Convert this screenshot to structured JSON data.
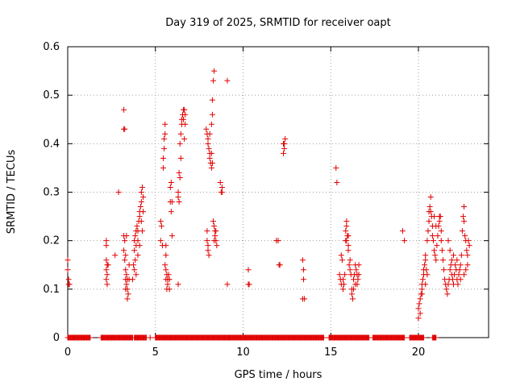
{
  "chart_data": {
    "type": "scatter",
    "title": "Day 319 of 2025, SRMTID for receiver oapt",
    "xlabel": "GPS time / hours",
    "ylabel": "SRMTID / TECUs",
    "xlim": [
      0,
      24
    ],
    "ylim": [
      0,
      0.6
    ],
    "xticks": [
      0,
      5,
      10,
      15,
      20
    ],
    "xtick_labels": [
      "0",
      "5",
      "10",
      "15",
      "20"
    ],
    "yticks": [
      0,
      0.1,
      0.2,
      0.3,
      0.4,
      0.5,
      0.6
    ],
    "ytick_labels": [
      "0",
      "0.1",
      "0.2",
      "0.3",
      "0.4",
      "0.5",
      "0.6"
    ],
    "grid": true,
    "marker": "plus",
    "color": "#e00000",
    "series": [
      {
        "name": "SRMTID",
        "points": [
          [
            0.0,
            0.16
          ],
          [
            0.0,
            0.14
          ],
          [
            0.05,
            0.12
          ],
          [
            0.05,
            0.11
          ],
          [
            0.1,
            0.11
          ],
          [
            2.2,
            0.2
          ],
          [
            2.2,
            0.19
          ],
          [
            2.2,
            0.16
          ],
          [
            2.25,
            0.15
          ],
          [
            2.2,
            0.14
          ],
          [
            2.25,
            0.13
          ],
          [
            2.2,
            0.12
          ],
          [
            2.25,
            0.11
          ],
          [
            2.3,
            0.15
          ],
          [
            2.7,
            0.17
          ],
          [
            2.9,
            0.3
          ],
          [
            3.2,
            0.47
          ],
          [
            3.25,
            0.43
          ],
          [
            3.2,
            0.43
          ],
          [
            3.2,
            0.21
          ],
          [
            3.25,
            0.2
          ],
          [
            3.2,
            0.18
          ],
          [
            3.3,
            0.17
          ],
          [
            3.25,
            0.16
          ],
          [
            3.3,
            0.14
          ],
          [
            3.35,
            0.13
          ],
          [
            3.3,
            0.12
          ],
          [
            3.4,
            0.12
          ],
          [
            3.35,
            0.11
          ],
          [
            3.4,
            0.1
          ],
          [
            3.3,
            0.1
          ],
          [
            3.45,
            0.09
          ],
          [
            3.4,
            0.08
          ],
          [
            3.5,
            0.12
          ],
          [
            3.35,
            0.21
          ],
          [
            3.5,
            0.15
          ],
          [
            3.7,
            0.12
          ],
          [
            3.75,
            0.15
          ],
          [
            3.8,
            0.18
          ],
          [
            3.8,
            0.2
          ],
          [
            3.85,
            0.21
          ],
          [
            3.9,
            0.22
          ],
          [
            3.95,
            0.23
          ],
          [
            3.9,
            0.19
          ],
          [
            4.0,
            0.2
          ],
          [
            4.0,
            0.22
          ],
          [
            4.05,
            0.24
          ],
          [
            4.1,
            0.25
          ],
          [
            4.1,
            0.26
          ],
          [
            4.15,
            0.27
          ],
          [
            4.2,
            0.28
          ],
          [
            4.2,
            0.3
          ],
          [
            4.25,
            0.31
          ],
          [
            4.3,
            0.29
          ],
          [
            4.3,
            0.26
          ],
          [
            4.25,
            0.22
          ],
          [
            3.85,
            0.16
          ],
          [
            3.8,
            0.14
          ],
          [
            3.9,
            0.13
          ],
          [
            4.0,
            0.17
          ],
          [
            4.1,
            0.19
          ],
          [
            4.2,
            0.24
          ],
          [
            5.3,
            0.24
          ],
          [
            5.35,
            0.23
          ],
          [
            5.3,
            0.2
          ],
          [
            5.4,
            0.19
          ],
          [
            5.45,
            0.35
          ],
          [
            5.45,
            0.37
          ],
          [
            5.5,
            0.39
          ],
          [
            5.55,
            0.44
          ],
          [
            5.55,
            0.42
          ],
          [
            5.5,
            0.41
          ],
          [
            5.6,
            0.19
          ],
          [
            5.6,
            0.17
          ],
          [
            5.55,
            0.15
          ],
          [
            5.6,
            0.14
          ],
          [
            5.65,
            0.13
          ],
          [
            5.6,
            0.12
          ],
          [
            5.7,
            0.11
          ],
          [
            5.65,
            0.1
          ],
          [
            5.7,
            0.12
          ],
          [
            5.75,
            0.13
          ],
          [
            5.8,
            0.12
          ],
          [
            5.8,
            0.1
          ],
          [
            5.85,
            0.31
          ],
          [
            5.85,
            0.28
          ],
          [
            5.9,
            0.32
          ],
          [
            5.9,
            0.26
          ],
          [
            5.95,
            0.28
          ],
          [
            5.95,
            0.21
          ],
          [
            6.3,
            0.3
          ],
          [
            6.3,
            0.29
          ],
          [
            6.35,
            0.28
          ],
          [
            6.3,
            0.11
          ],
          [
            6.35,
            0.34
          ],
          [
            6.4,
            0.33
          ],
          [
            6.45,
            0.37
          ],
          [
            6.4,
            0.4
          ],
          [
            6.45,
            0.42
          ],
          [
            6.5,
            0.44
          ],
          [
            6.5,
            0.45
          ],
          [
            6.55,
            0.46
          ],
          [
            6.6,
            0.47
          ],
          [
            6.65,
            0.47
          ],
          [
            6.6,
            0.45
          ],
          [
            6.7,
            0.46
          ],
          [
            6.7,
            0.44
          ],
          [
            6.65,
            0.41
          ],
          [
            7.9,
            0.43
          ],
          [
            7.95,
            0.42
          ],
          [
            8.0,
            0.41
          ],
          [
            8.0,
            0.4
          ],
          [
            8.05,
            0.39
          ],
          [
            8.1,
            0.38
          ],
          [
            8.1,
            0.37
          ],
          [
            8.15,
            0.36
          ],
          [
            8.2,
            0.35
          ],
          [
            8.25,
            0.36
          ],
          [
            8.2,
            0.38
          ],
          [
            8.25,
            0.46
          ],
          [
            8.25,
            0.49
          ],
          [
            8.3,
            0.53
          ],
          [
            8.35,
            0.55
          ],
          [
            8.2,
            0.44
          ],
          [
            8.1,
            0.42
          ],
          [
            7.95,
            0.22
          ],
          [
            7.95,
            0.2
          ],
          [
            8.0,
            0.19
          ],
          [
            8.0,
            0.18
          ],
          [
            8.05,
            0.17
          ],
          [
            8.3,
            0.24
          ],
          [
            8.35,
            0.23
          ],
          [
            8.4,
            0.22
          ],
          [
            8.4,
            0.21
          ],
          [
            8.45,
            0.2
          ],
          [
            8.5,
            0.19
          ],
          [
            8.35,
            0.2
          ],
          [
            8.45,
            0.22
          ],
          [
            8.7,
            0.32
          ],
          [
            8.8,
            0.31
          ],
          [
            8.75,
            0.3
          ],
          [
            8.8,
            0.3
          ],
          [
            9.1,
            0.53
          ],
          [
            9.1,
            0.11
          ],
          [
            10.3,
            0.14
          ],
          [
            10.3,
            0.11
          ],
          [
            10.35,
            0.11
          ],
          [
            11.9,
            0.2
          ],
          [
            12.0,
            0.2
          ],
          [
            12.1,
            0.15
          ],
          [
            12.05,
            0.15
          ],
          [
            12.3,
            0.4
          ],
          [
            12.35,
            0.39
          ],
          [
            12.4,
            0.41
          ],
          [
            12.35,
            0.4
          ],
          [
            12.3,
            0.38
          ],
          [
            13.4,
            0.16
          ],
          [
            13.45,
            0.14
          ],
          [
            13.45,
            0.12
          ],
          [
            13.4,
            0.08
          ],
          [
            13.5,
            0.08
          ],
          [
            15.3,
            0.35
          ],
          [
            15.35,
            0.32
          ],
          [
            15.5,
            0.13
          ],
          [
            15.55,
            0.12
          ],
          [
            15.6,
            0.11
          ],
          [
            15.6,
            0.17
          ],
          [
            15.65,
            0.16
          ],
          [
            15.7,
            0.12
          ],
          [
            15.7,
            0.1
          ],
          [
            15.75,
            0.11
          ],
          [
            15.8,
            0.13
          ],
          [
            15.85,
            0.2
          ],
          [
            15.85,
            0.22
          ],
          [
            15.9,
            0.23
          ],
          [
            15.9,
            0.24
          ],
          [
            15.95,
            0.21
          ],
          [
            16.0,
            0.19
          ],
          [
            16.0,
            0.18
          ],
          [
            16.05,
            0.15
          ],
          [
            16.1,
            0.14
          ],
          [
            16.15,
            0.13
          ],
          [
            16.2,
            0.1
          ],
          [
            16.2,
            0.09
          ],
          [
            16.25,
            0.08
          ],
          [
            16.3,
            0.1
          ],
          [
            16.3,
            0.12
          ],
          [
            16.35,
            0.13
          ],
          [
            16.4,
            0.15
          ],
          [
            16.45,
            0.14
          ],
          [
            16.5,
            0.13
          ],
          [
            16.55,
            0.12
          ],
          [
            16.5,
            0.11
          ],
          [
            16.6,
            0.13
          ],
          [
            16.6,
            0.15
          ],
          [
            16.4,
            0.11
          ],
          [
            16.1,
            0.16
          ],
          [
            16.0,
            0.21
          ],
          [
            15.9,
            0.2
          ],
          [
            19.1,
            0.22
          ],
          [
            19.2,
            0.2
          ],
          [
            20.0,
            0.04
          ],
          [
            20.0,
            0.06
          ],
          [
            20.05,
            0.07
          ],
          [
            20.1,
            0.08
          ],
          [
            20.1,
            0.05
          ],
          [
            20.15,
            0.09
          ],
          [
            20.2,
            0.1
          ],
          [
            20.2,
            0.11
          ],
          [
            20.25,
            0.12
          ],
          [
            20.3,
            0.13
          ],
          [
            20.3,
            0.14
          ],
          [
            20.35,
            0.15
          ],
          [
            20.4,
            0.16
          ],
          [
            20.4,
            0.17
          ],
          [
            20.45,
            0.14
          ],
          [
            20.5,
            0.13
          ],
          [
            20.5,
            0.2
          ],
          [
            20.55,
            0.22
          ],
          [
            20.6,
            0.24
          ],
          [
            20.6,
            0.26
          ],
          [
            20.65,
            0.27
          ],
          [
            20.7,
            0.29
          ],
          [
            20.75,
            0.25
          ],
          [
            20.8,
            0.23
          ],
          [
            20.8,
            0.21
          ],
          [
            20.85,
            0.2
          ],
          [
            20.9,
            0.18
          ],
          [
            20.95,
            0.17
          ],
          [
            21.0,
            0.16
          ],
          [
            21.05,
            0.19
          ],
          [
            21.1,
            0.21
          ],
          [
            21.15,
            0.23
          ],
          [
            21.2,
            0.24
          ],
          [
            21.25,
            0.25
          ],
          [
            21.3,
            0.22
          ],
          [
            21.3,
            0.2
          ],
          [
            21.35,
            0.18
          ],
          [
            21.4,
            0.16
          ],
          [
            21.45,
            0.14
          ],
          [
            21.5,
            0.12
          ],
          [
            21.55,
            0.11
          ],
          [
            21.6,
            0.1
          ],
          [
            21.65,
            0.09
          ],
          [
            21.7,
            0.11
          ],
          [
            21.75,
            0.12
          ],
          [
            21.8,
            0.14
          ],
          [
            21.85,
            0.15
          ],
          [
            21.9,
            0.13
          ],
          [
            21.95,
            0.12
          ],
          [
            22.0,
            0.11
          ],
          [
            22.05,
            0.13
          ],
          [
            22.1,
            0.15
          ],
          [
            22.15,
            0.14
          ],
          [
            22.2,
            0.12
          ],
          [
            22.25,
            0.11
          ],
          [
            22.3,
            0.13
          ],
          [
            22.35,
            0.14
          ],
          [
            22.4,
            0.15
          ],
          [
            22.45,
            0.17
          ],
          [
            22.5,
            0.22
          ],
          [
            22.55,
            0.25
          ],
          [
            22.6,
            0.27
          ],
          [
            22.6,
            0.24
          ],
          [
            22.65,
            0.21
          ],
          [
            22.7,
            0.2
          ],
          [
            22.75,
            0.18
          ],
          [
            22.8,
            0.17
          ],
          [
            22.85,
            0.2
          ],
          [
            22.9,
            0.19
          ],
          [
            22.8,
            0.15
          ],
          [
            22.7,
            0.14
          ],
          [
            22.6,
            0.13
          ],
          [
            21.7,
            0.2
          ],
          [
            21.8,
            0.18
          ],
          [
            21.9,
            0.16
          ],
          [
            21.2,
            0.25
          ],
          [
            21.0,
            0.23
          ],
          [
            20.9,
            0.25
          ],
          [
            20.7,
            0.26
          ],
          [
            20.4,
            0.11
          ],
          [
            20.2,
            0.09
          ],
          [
            22.0,
            0.17
          ],
          [
            22.2,
            0.16
          ],
          [
            22.4,
            0.12
          ]
        ]
      }
    ],
    "zero_segments": [
      [
        0.0,
        1.3
      ],
      [
        1.9,
        3.7
      ],
      [
        3.8,
        4.5
      ],
      [
        5.0,
        9.2
      ],
      [
        9.2,
        14.6
      ],
      [
        14.9,
        17.2
      ],
      [
        17.4,
        19.2
      ],
      [
        19.5,
        20.3
      ],
      [
        20.8,
        21.0
      ]
    ]
  }
}
